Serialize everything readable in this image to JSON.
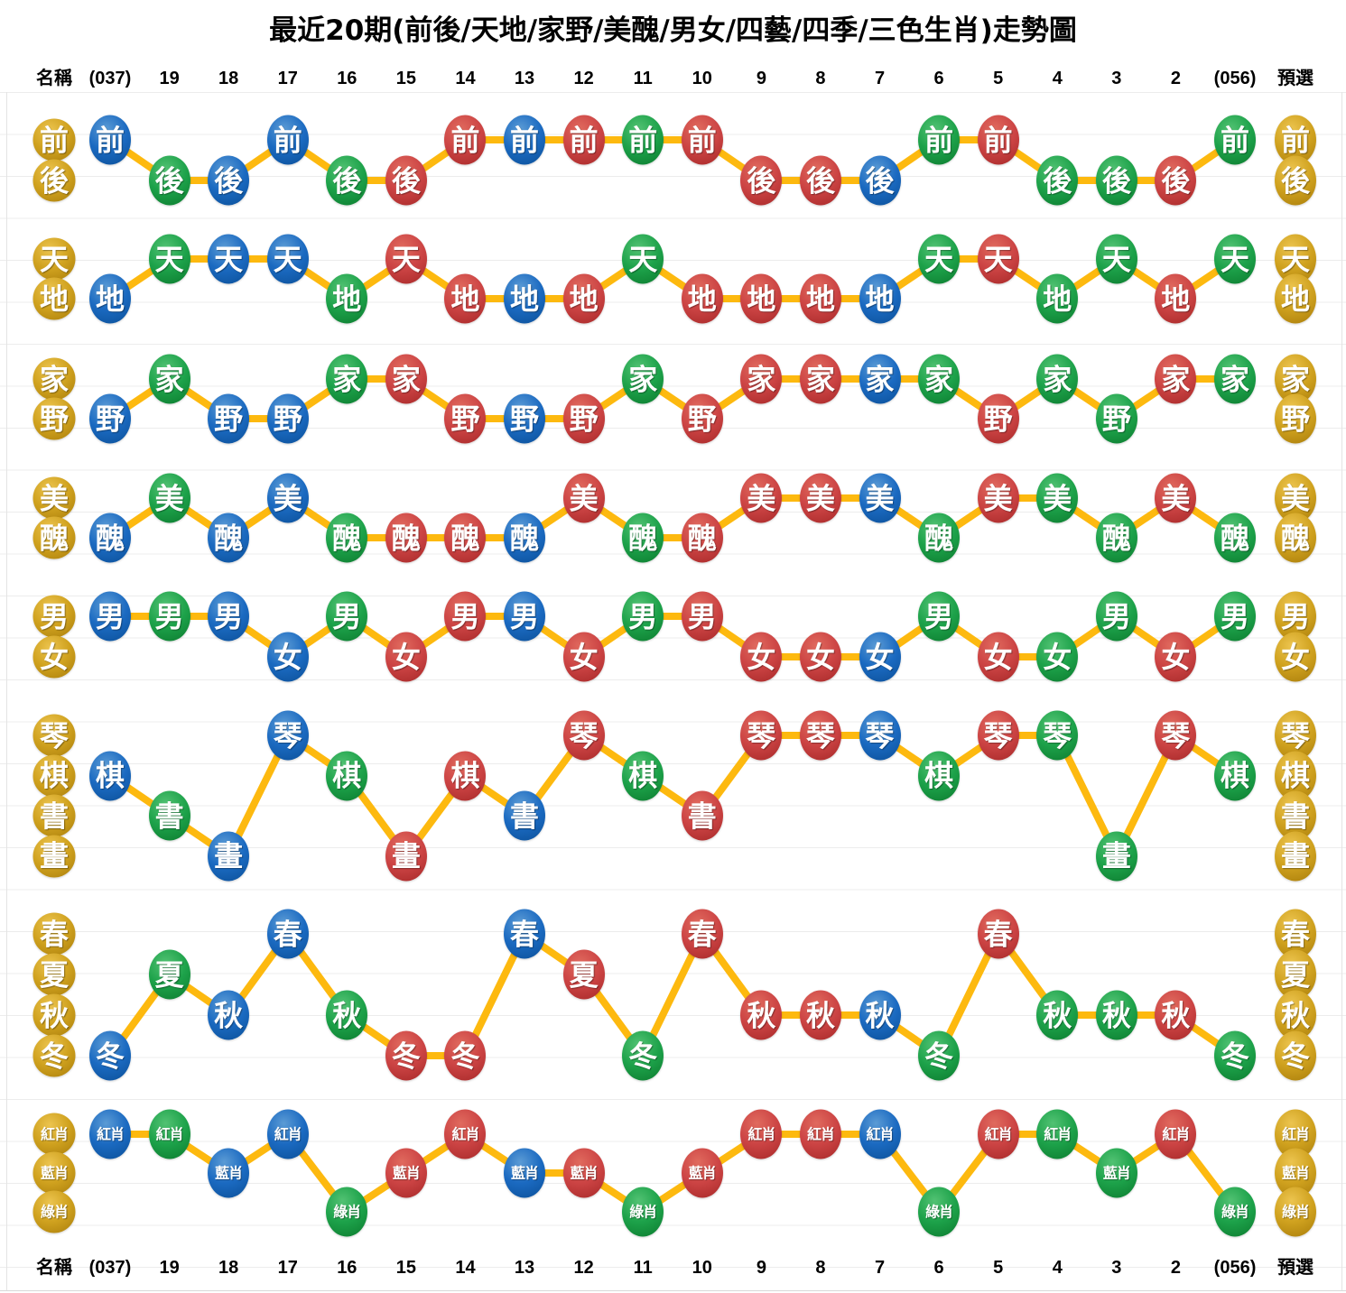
{
  "title": "最近20期(前後/天地/家野/美醜/男女/四藝/四季/三色生肖)走勢圖",
  "header": {
    "name_label": "名稱",
    "predict_label": "預選",
    "periods": [
      "(037)",
      "19",
      "18",
      "17",
      "16",
      "15",
      "14",
      "13",
      "12",
      "11",
      "10",
      "9",
      "8",
      "7",
      "6",
      "5",
      "4",
      "3",
      "2",
      "(056)"
    ]
  },
  "footer": {
    "name_label": "名稱",
    "predict_label": "預選"
  },
  "colors": {
    "blue": "#1b6ac1",
    "green": "#1da24a",
    "red": "#cc4444",
    "gold": "#d0a21f",
    "line": "#fdb90f",
    "grid": "#ececec"
  },
  "chart_data": {
    "type": "line",
    "legend_position": "left-and-right-gold-columns",
    "grid": true,
    "periods": [
      "(037)",
      "19",
      "18",
      "17",
      "16",
      "15",
      "14",
      "13",
      "12",
      "11",
      "10",
      "9",
      "8",
      "7",
      "6",
      "5",
      "4",
      "3",
      "2",
      "(056)"
    ],
    "rows": [
      {
        "id": "qianhou",
        "name": "前後",
        "options": [
          "前",
          "後"
        ],
        "points": [
          {
            "value": "前",
            "color": "blue"
          },
          {
            "value": "後",
            "color": "green"
          },
          {
            "value": "後",
            "color": "blue"
          },
          {
            "value": "前",
            "color": "blue"
          },
          {
            "value": "後",
            "color": "green"
          },
          {
            "value": "後",
            "color": "red"
          },
          {
            "value": "前",
            "color": "red"
          },
          {
            "value": "前",
            "color": "blue"
          },
          {
            "value": "前",
            "color": "red"
          },
          {
            "value": "前",
            "color": "green"
          },
          {
            "value": "前",
            "color": "red"
          },
          {
            "value": "後",
            "color": "red"
          },
          {
            "value": "後",
            "color": "red"
          },
          {
            "value": "後",
            "color": "blue"
          },
          {
            "value": "前",
            "color": "green"
          },
          {
            "value": "前",
            "color": "red"
          },
          {
            "value": "後",
            "color": "green"
          },
          {
            "value": "後",
            "color": "green"
          },
          {
            "value": "後",
            "color": "red"
          },
          {
            "value": "前",
            "color": "green"
          }
        ]
      },
      {
        "id": "tiandi",
        "name": "天地",
        "options": [
          "天",
          "地"
        ],
        "points": [
          {
            "value": "地",
            "color": "blue"
          },
          {
            "value": "天",
            "color": "green"
          },
          {
            "value": "天",
            "color": "blue"
          },
          {
            "value": "天",
            "color": "blue"
          },
          {
            "value": "地",
            "color": "green"
          },
          {
            "value": "天",
            "color": "red"
          },
          {
            "value": "地",
            "color": "red"
          },
          {
            "value": "地",
            "color": "blue"
          },
          {
            "value": "地",
            "color": "red"
          },
          {
            "value": "天",
            "color": "green"
          },
          {
            "value": "地",
            "color": "red"
          },
          {
            "value": "地",
            "color": "red"
          },
          {
            "value": "地",
            "color": "red"
          },
          {
            "value": "地",
            "color": "blue"
          },
          {
            "value": "天",
            "color": "green"
          },
          {
            "value": "天",
            "color": "red"
          },
          {
            "value": "地",
            "color": "green"
          },
          {
            "value": "天",
            "color": "green"
          },
          {
            "value": "地",
            "color": "red"
          },
          {
            "value": "天",
            "color": "green"
          }
        ]
      },
      {
        "id": "jiaye",
        "name": "家野",
        "options": [
          "家",
          "野"
        ],
        "points": [
          {
            "value": "野",
            "color": "blue"
          },
          {
            "value": "家",
            "color": "green"
          },
          {
            "value": "野",
            "color": "blue"
          },
          {
            "value": "野",
            "color": "blue"
          },
          {
            "value": "家",
            "color": "green"
          },
          {
            "value": "家",
            "color": "red"
          },
          {
            "value": "野",
            "color": "red"
          },
          {
            "value": "野",
            "color": "blue"
          },
          {
            "value": "野",
            "color": "red"
          },
          {
            "value": "家",
            "color": "green"
          },
          {
            "value": "野",
            "color": "red"
          },
          {
            "value": "家",
            "color": "red"
          },
          {
            "value": "家",
            "color": "red"
          },
          {
            "value": "家",
            "color": "blue"
          },
          {
            "value": "家",
            "color": "green"
          },
          {
            "value": "野",
            "color": "red"
          },
          {
            "value": "家",
            "color": "green"
          },
          {
            "value": "野",
            "color": "green"
          },
          {
            "value": "家",
            "color": "red"
          },
          {
            "value": "家",
            "color": "green"
          }
        ]
      },
      {
        "id": "meichou",
        "name": "美醜",
        "options": [
          "美",
          "醜"
        ],
        "points": [
          {
            "value": "醜",
            "color": "blue"
          },
          {
            "value": "美",
            "color": "green"
          },
          {
            "value": "醜",
            "color": "blue"
          },
          {
            "value": "美",
            "color": "blue"
          },
          {
            "value": "醜",
            "color": "green"
          },
          {
            "value": "醜",
            "color": "red"
          },
          {
            "value": "醜",
            "color": "red"
          },
          {
            "value": "醜",
            "color": "blue"
          },
          {
            "value": "美",
            "color": "red"
          },
          {
            "value": "醜",
            "color": "green"
          },
          {
            "value": "醜",
            "color": "red"
          },
          {
            "value": "美",
            "color": "red"
          },
          {
            "value": "美",
            "color": "red"
          },
          {
            "value": "美",
            "color": "blue"
          },
          {
            "value": "醜",
            "color": "green"
          },
          {
            "value": "美",
            "color": "red"
          },
          {
            "value": "美",
            "color": "green"
          },
          {
            "value": "醜",
            "color": "green"
          },
          {
            "value": "美",
            "color": "red"
          },
          {
            "value": "醜",
            "color": "green"
          }
        ]
      },
      {
        "id": "nannv",
        "name": "男女",
        "options": [
          "男",
          "女"
        ],
        "points": [
          {
            "value": "男",
            "color": "blue"
          },
          {
            "value": "男",
            "color": "green"
          },
          {
            "value": "男",
            "color": "blue"
          },
          {
            "value": "女",
            "color": "blue"
          },
          {
            "value": "男",
            "color": "green"
          },
          {
            "value": "女",
            "color": "red"
          },
          {
            "value": "男",
            "color": "red"
          },
          {
            "value": "男",
            "color": "blue"
          },
          {
            "value": "女",
            "color": "red"
          },
          {
            "value": "男",
            "color": "green"
          },
          {
            "value": "男",
            "color": "red"
          },
          {
            "value": "女",
            "color": "red"
          },
          {
            "value": "女",
            "color": "red"
          },
          {
            "value": "女",
            "color": "blue"
          },
          {
            "value": "男",
            "color": "green"
          },
          {
            "value": "女",
            "color": "red"
          },
          {
            "value": "女",
            "color": "green"
          },
          {
            "value": "男",
            "color": "green"
          },
          {
            "value": "女",
            "color": "red"
          },
          {
            "value": "男",
            "color": "green"
          }
        ]
      },
      {
        "id": "siyi",
        "name": "四藝",
        "options": [
          "琴",
          "棋",
          "書",
          "畫"
        ],
        "points": [
          {
            "value": "棋",
            "color": "blue"
          },
          {
            "value": "書",
            "color": "green"
          },
          {
            "value": "畫",
            "color": "blue"
          },
          {
            "value": "琴",
            "color": "blue"
          },
          {
            "value": "棋",
            "color": "green"
          },
          {
            "value": "畫",
            "color": "red"
          },
          {
            "value": "棋",
            "color": "red"
          },
          {
            "value": "書",
            "color": "blue"
          },
          {
            "value": "琴",
            "color": "red"
          },
          {
            "value": "棋",
            "color": "green"
          },
          {
            "value": "書",
            "color": "red"
          },
          {
            "value": "琴",
            "color": "red"
          },
          {
            "value": "琴",
            "color": "red"
          },
          {
            "value": "琴",
            "color": "blue"
          },
          {
            "value": "棋",
            "color": "green"
          },
          {
            "value": "琴",
            "color": "red"
          },
          {
            "value": "琴",
            "color": "green"
          },
          {
            "value": "畫",
            "color": "green"
          },
          {
            "value": "琴",
            "color": "red"
          },
          {
            "value": "棋",
            "color": "green"
          }
        ]
      },
      {
        "id": "siji",
        "name": "四季",
        "options": [
          "春",
          "夏",
          "秋",
          "冬"
        ],
        "points": [
          {
            "value": "冬",
            "color": "blue"
          },
          {
            "value": "夏",
            "color": "green"
          },
          {
            "value": "秋",
            "color": "blue"
          },
          {
            "value": "春",
            "color": "blue"
          },
          {
            "value": "秋",
            "color": "green"
          },
          {
            "value": "冬",
            "color": "red"
          },
          {
            "value": "冬",
            "color": "red"
          },
          {
            "value": "春",
            "color": "blue"
          },
          {
            "value": "夏",
            "color": "red"
          },
          {
            "value": "冬",
            "color": "green"
          },
          {
            "value": "春",
            "color": "red"
          },
          {
            "value": "秋",
            "color": "red"
          },
          {
            "value": "秋",
            "color": "red"
          },
          {
            "value": "秋",
            "color": "blue"
          },
          {
            "value": "冬",
            "color": "green"
          },
          {
            "value": "春",
            "color": "red"
          },
          {
            "value": "秋",
            "color": "green"
          },
          {
            "value": "秋",
            "color": "green"
          },
          {
            "value": "秋",
            "color": "red"
          },
          {
            "value": "冬",
            "color": "green"
          }
        ]
      },
      {
        "id": "sanxiao",
        "name": "三色生肖",
        "options": [
          "紅肖",
          "藍肖",
          "綠肖"
        ],
        "points": [
          {
            "value": "紅肖",
            "color": "blue"
          },
          {
            "value": "紅肖",
            "color": "green"
          },
          {
            "value": "藍肖",
            "color": "blue"
          },
          {
            "value": "紅肖",
            "color": "blue"
          },
          {
            "value": "綠肖",
            "color": "green"
          },
          {
            "value": "藍肖",
            "color": "red"
          },
          {
            "value": "紅肖",
            "color": "red"
          },
          {
            "value": "藍肖",
            "color": "blue"
          },
          {
            "value": "藍肖",
            "color": "red"
          },
          {
            "value": "綠肖",
            "color": "green"
          },
          {
            "value": "藍肖",
            "color": "red"
          },
          {
            "value": "紅肖",
            "color": "red"
          },
          {
            "value": "紅肖",
            "color": "red"
          },
          {
            "value": "紅肖",
            "color": "blue"
          },
          {
            "value": "綠肖",
            "color": "green"
          },
          {
            "value": "紅肖",
            "color": "red"
          },
          {
            "value": "紅肖",
            "color": "green"
          },
          {
            "value": "藍肖",
            "color": "green"
          },
          {
            "value": "紅肖",
            "color": "red"
          },
          {
            "value": "綠肖",
            "color": "green"
          }
        ]
      }
    ]
  }
}
